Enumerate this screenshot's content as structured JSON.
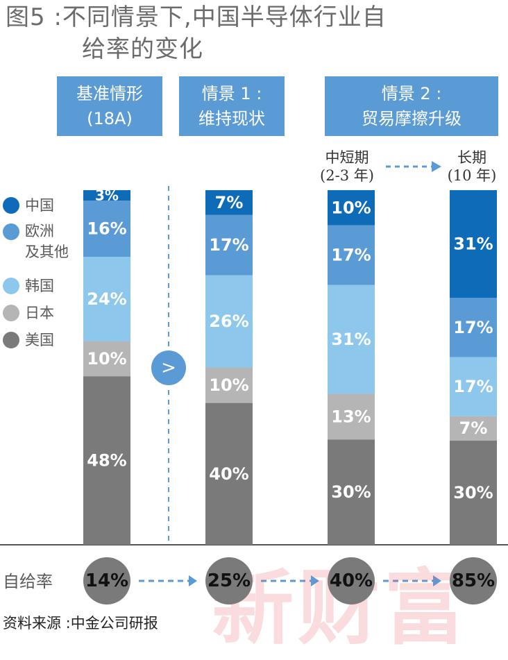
{
  "title": {
    "line1": "图5 :不同情景下,中国半导体行业自",
    "line2": "给率的变化"
  },
  "scenarios": [
    {
      "line1": "基准情形",
      "line2": "(18A)"
    },
    {
      "line1": "情景 1 :",
      "line2": "维持现状"
    },
    {
      "line1": "情景 2 :",
      "line2": "贸易摩擦升级"
    }
  ],
  "subperiods": [
    {
      "line1": "中短期",
      "line2": "(2-3 年)"
    },
    {
      "line1": "长期",
      "line2": "(10 年)"
    }
  ],
  "legend": [
    {
      "label": "中国",
      "color": "#0e6bb8"
    },
    {
      "label": "欧洲\n及其他",
      "color": "#5b9bd5"
    },
    {
      "label": "韩国",
      "color": "#8dc8ec"
    },
    {
      "label": "日本",
      "color": "#b5b5b6"
    },
    {
      "label": "美国",
      "color": "#7a7a7a"
    }
  ],
  "arrow_symbol": ">",
  "self_sufficiency_label": "自给率",
  "source": "资料来源 :中金公司研报",
  "watermark": "新财富",
  "chart_data": {
    "type": "bar",
    "stacked": true,
    "categories": [
      "基准情形 (18A)",
      "情景 1: 维持现状",
      "中短期 (2-3 年)",
      "长期 (10 年)"
    ],
    "series": [
      {
        "name": "美国",
        "values": [
          48,
          40,
          30,
          30
        ],
        "color": "#7a7a7a"
      },
      {
        "name": "日本",
        "values": [
          10,
          10,
          13,
          7
        ],
        "color": "#b5b5b6"
      },
      {
        "name": "韩国",
        "values": [
          24,
          26,
          31,
          17
        ],
        "color": "#8dc8ec"
      },
      {
        "name": "欧洲及其他",
        "values": [
          16,
          17,
          17,
          17
        ],
        "color": "#5b9bd5"
      },
      {
        "name": "中国",
        "values": [
          3,
          7,
          10,
          31
        ],
        "color": "#0e6bb8"
      }
    ],
    "self_sufficiency": [
      "14%",
      "25%",
      "40%",
      "85%"
    ],
    "ylim": [
      0,
      100
    ]
  }
}
